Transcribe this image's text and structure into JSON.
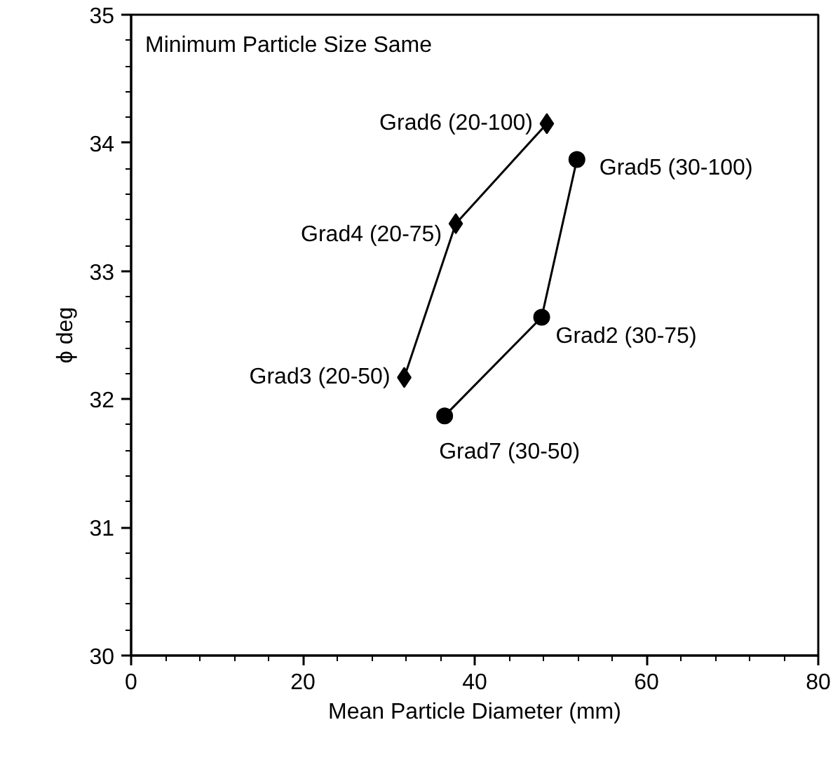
{
  "chart_data": {
    "type": "line",
    "xlabel": "Mean Particle Diameter (mm)",
    "ylabel": "ϕ deg",
    "series": [
      {
        "color": "#000000",
        "marker": "diamond",
        "x": [
          31.8,
          37.8,
          48.4
        ],
        "values": [
          32.17,
          33.37,
          34.15
        ]
      },
      {
        "color": "#000000",
        "marker": "circle",
        "x": [
          36.5,
          47.8,
          51.9
        ],
        "values": [
          31.87,
          32.64,
          33.87
        ]
      }
    ],
    "annotations": [
      "Minimum Particle Size Same",
      {
        "text": "Grad6 (20-100)",
        "x": 48.4,
        "y": 34.15
      },
      {
        "text": "Grad5 (30-100)",
        "x": 51.9,
        "y": 33.87
      },
      {
        "text": "Grad4 (20-75)",
        "x": 37.8,
        "y": 33.37
      },
      {
        "text": "Grad3 (20-50)",
        "x": 31.8,
        "y": 32.17
      },
      {
        "text": "Grad2 (30-75)",
        "x": 47.8,
        "y": 32.64
      },
      {
        "text": "Grad7 (30-50)",
        "x": 36.5,
        "y": 31.87
      }
    ],
    "xlim": [
      0,
      80
    ],
    "xticks": [
      0,
      {
        "value": 4,
        "label": null
      },
      {
        "value": 8,
        "label": null
      },
      {
        "value": 12,
        "label": null
      },
      {
        "value": 16,
        "label": null
      },
      20,
      {
        "value": 24,
        "label": null
      },
      {
        "value": 28,
        "label": null
      },
      {
        "value": 32,
        "label": null
      },
      {
        "value": 36,
        "label": null
      },
      40,
      {
        "value": 44,
        "label": null
      },
      {
        "value": 48,
        "label": null
      },
      {
        "value": 52,
        "label": null
      },
      {
        "value": 56,
        "label": null
      },
      60,
      {
        "value": 64,
        "label": null
      },
      {
        "value": 68,
        "label": null
      },
      {
        "value": 72,
        "label": null
      },
      {
        "value": 76,
        "label": null
      },
      80
    ],
    "ylim": [
      30,
      35
    ],
    "yticks": [
      30,
      {
        "value": 30.2,
        "label": null
      },
      {
        "value": 30.4,
        "label": null
      },
      {
        "value": 30.6,
        "label": null
      },
      {
        "value": 30.8,
        "label": null
      },
      31,
      {
        "value": 31.2,
        "label": null
      },
      {
        "value": 31.4,
        "label": null
      },
      {
        "value": 31.6,
        "label": null
      },
      {
        "value": 31.8,
        "label": null
      },
      32,
      {
        "value": 32.2,
        "label": null
      },
      {
        "value": 32.4,
        "label": null
      },
      {
        "value": 32.6,
        "label": null
      },
      {
        "value": 32.8,
        "label": null
      },
      33,
      {
        "value": 33.2,
        "label": null
      },
      {
        "value": 33.4,
        "label": null
      },
      {
        "value": 33.6,
        "label": null
      },
      {
        "value": 33.8,
        "label": null
      },
      34,
      {
        "value": 34.2,
        "label": null
      },
      {
        "value": 34.4,
        "label": null
      },
      {
        "value": 34.6,
        "label": null
      },
      {
        "value": 34.8,
        "label": null
      },
      35
    ],
    "grid": false,
    "line_style": "solid"
  }
}
